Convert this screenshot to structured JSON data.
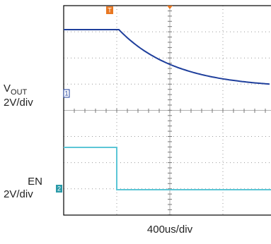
{
  "channel_1": {
    "label": "V",
    "subscript": "OUT",
    "scale": "2V/div",
    "marker": "1"
  },
  "channel_2": {
    "label": "EN",
    "scale": "2V/div",
    "marker": "2"
  },
  "timebase": "400us/div",
  "trigger_marker": "T"
}
